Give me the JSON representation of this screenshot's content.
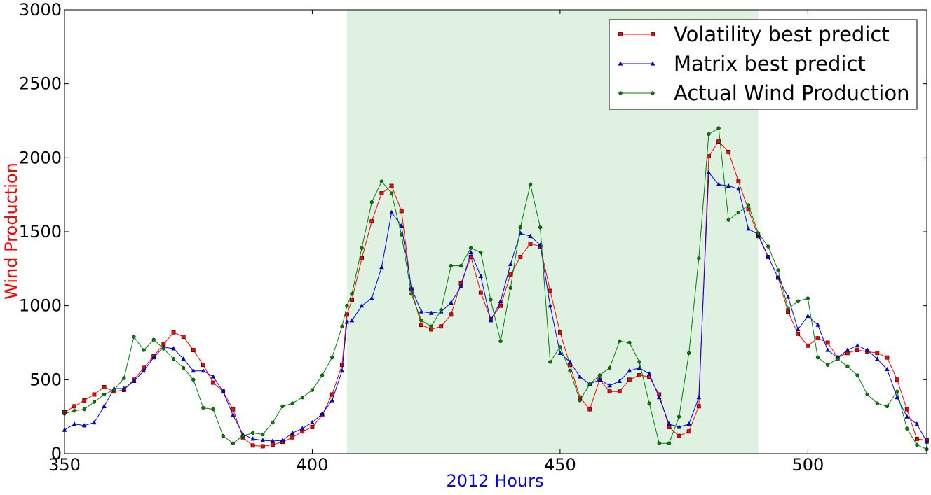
{
  "chart_data": {
    "type": "line",
    "xlabel": "2012 Hours",
    "ylabel": "Wind Production",
    "xlabel_color": "#0000ff",
    "ylabel_color": "#ff0000",
    "xlim": [
      350,
      524
    ],
    "ylim": [
      0,
      3000
    ],
    "xticks": [
      350,
      400,
      450,
      500
    ],
    "yticks": [
      0,
      500,
      1000,
      1500,
      2000,
      2500,
      3000
    ],
    "grid": false,
    "legend_position": "top-right",
    "shaded_region": {
      "x_start": 407,
      "x_end": 490,
      "color": "#dff2e1"
    },
    "series": [
      {
        "name": "Volatility best predict",
        "color": "#ff0000",
        "marker": "square",
        "x": [
          350,
          352,
          354,
          356,
          358,
          360,
          362,
          364,
          366,
          368,
          370,
          372,
          374,
          376,
          378,
          380,
          382,
          384,
          386,
          388,
          390,
          392,
          394,
          396,
          398,
          400,
          402,
          404,
          406,
          407,
          408,
          410,
          412,
          414,
          416,
          418,
          420,
          422,
          424,
          426,
          428,
          430,
          432,
          434,
          436,
          438,
          440,
          442,
          444,
          446,
          448,
          450,
          452,
          454,
          456,
          458,
          460,
          462,
          464,
          466,
          468,
          470,
          472,
          474,
          476,
          478,
          480,
          482,
          484,
          486,
          488,
          490,
          492,
          494,
          496,
          498,
          500,
          502,
          504,
          506,
          508,
          510,
          512,
          514,
          516,
          518,
          520,
          522,
          524
        ],
        "y": [
          280,
          320,
          360,
          400,
          450,
          420,
          430,
          500,
          580,
          660,
          740,
          820,
          790,
          700,
          600,
          480,
          420,
          300,
          110,
          55,
          50,
          60,
          80,
          110,
          150,
          180,
          260,
          400,
          600,
          940,
          1040,
          1320,
          1570,
          1760,
          1810,
          1640,
          1110,
          870,
          840,
          860,
          940,
          1150,
          1330,
          1090,
          910,
          1000,
          1210,
          1330,
          1420,
          1400,
          1100,
          820,
          600,
          380,
          300,
          500,
          420,
          420,
          500,
          530,
          520,
          400,
          180,
          120,
          150,
          320,
          2010,
          2110,
          2040,
          1840,
          1650,
          1470,
          1330,
          1190,
          960,
          810,
          730,
          780,
          750,
          650,
          680,
          700,
          690,
          680,
          650,
          500,
          300,
          100,
          90
        ]
      },
      {
        "name": "Matrix best predict",
        "color": "#0000ff",
        "marker": "triangle",
        "x": [
          350,
          352,
          354,
          356,
          358,
          360,
          362,
          364,
          366,
          368,
          370,
          372,
          374,
          376,
          378,
          380,
          382,
          384,
          386,
          388,
          390,
          392,
          394,
          396,
          398,
          400,
          402,
          404,
          406,
          407,
          408,
          410,
          412,
          414,
          416,
          418,
          420,
          422,
          424,
          426,
          428,
          430,
          432,
          434,
          436,
          438,
          440,
          442,
          444,
          446,
          448,
          450,
          452,
          454,
          456,
          458,
          460,
          462,
          464,
          466,
          468,
          470,
          472,
          474,
          476,
          478,
          480,
          482,
          484,
          486,
          488,
          490,
          492,
          494,
          496,
          498,
          500,
          502,
          504,
          506,
          508,
          510,
          512,
          514,
          516,
          518,
          520,
          522,
          524
        ],
        "y": [
          160,
          200,
          190,
          210,
          320,
          440,
          440,
          490,
          560,
          650,
          720,
          710,
          640,
          560,
          560,
          520,
          420,
          260,
          130,
          100,
          90,
          85,
          90,
          140,
          170,
          210,
          270,
          360,
          560,
          890,
          900,
          1000,
          1050,
          1260,
          1630,
          1540,
          1120,
          960,
          950,
          960,
          1020,
          1130,
          1360,
          1200,
          900,
          1030,
          1280,
          1490,
          1470,
          1410,
          1000,
          680,
          620,
          520,
          470,
          500,
          460,
          490,
          560,
          580,
          540,
          380,
          200,
          180,
          200,
          380,
          1900,
          1820,
          1810,
          1790,
          1520,
          1480,
          1330,
          1190,
          1060,
          840,
          930,
          870,
          700,
          650,
          700,
          730,
          700,
          640,
          570,
          380,
          250,
          200,
          80
        ]
      },
      {
        "name": "Actual Wind Production",
        "color": "#008000",
        "marker": "circle",
        "x": [
          350,
          352,
          354,
          356,
          358,
          360,
          362,
          364,
          366,
          368,
          370,
          372,
          374,
          376,
          378,
          380,
          382,
          384,
          386,
          388,
          390,
          392,
          394,
          396,
          398,
          400,
          402,
          404,
          406,
          407,
          408,
          410,
          412,
          414,
          416,
          418,
          420,
          422,
          424,
          426,
          428,
          430,
          432,
          434,
          436,
          438,
          440,
          442,
          444,
          446,
          448,
          450,
          452,
          454,
          456,
          458,
          460,
          462,
          464,
          466,
          468,
          470,
          472,
          474,
          476,
          478,
          480,
          482,
          484,
          486,
          488,
          490,
          492,
          494,
          496,
          498,
          500,
          502,
          504,
          506,
          508,
          510,
          512,
          514,
          516,
          518,
          520,
          522,
          524
        ],
        "y": [
          270,
          290,
          300,
          350,
          400,
          430,
          510,
          790,
          700,
          770,
          710,
          640,
          580,
          500,
          310,
          300,
          120,
          70,
          120,
          140,
          130,
          210,
          320,
          340,
          380,
          430,
          530,
          650,
          860,
          1000,
          1080,
          1390,
          1700,
          1840,
          1760,
          1480,
          1080,
          900,
          860,
          970,
          1270,
          1270,
          1390,
          1360,
          1040,
          760,
          1120,
          1530,
          1820,
          1530,
          620,
          720,
          560,
          360,
          470,
          530,
          580,
          760,
          750,
          620,
          340,
          70,
          70,
          250,
          680,
          1320,
          2160,
          2200,
          1580,
          1630,
          1680,
          1490,
          1400,
          1240,
          980,
          1030,
          1050,
          650,
          600,
          640,
          590,
          530,
          400,
          340,
          320,
          420,
          170,
          60,
          30
        ]
      }
    ]
  }
}
